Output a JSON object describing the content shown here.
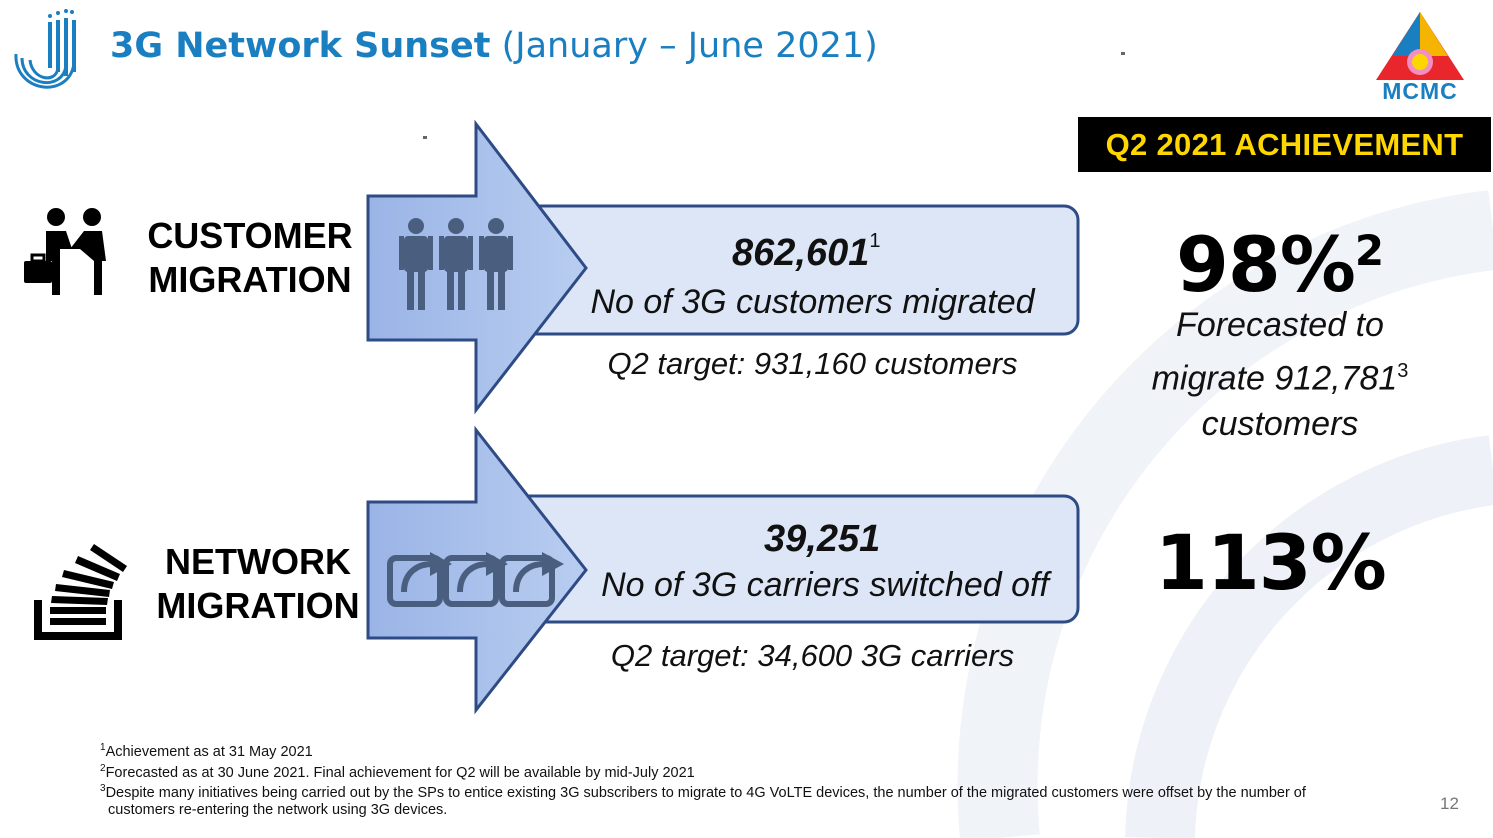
{
  "header": {
    "title_bold": "3G Network Sunset",
    "title_rest": "(January – June 2021)",
    "logo_right_text": "MCMC"
  },
  "badge": {
    "label": "Q2 2021 ACHIEVEMENT"
  },
  "customer": {
    "label_line1": "CUSTOMER",
    "label_line2": "MIGRATION",
    "value": "862,601",
    "value_sup": "1",
    "description": "No of 3G customers migrated",
    "target": "Q2 target: 931,160 customers",
    "achievement": "98%",
    "achievement_sup": "2",
    "forecast_line1": "Forecasted to",
    "forecast_line2": "migrate 912,781",
    "forecast_sup": "3",
    "forecast_line3": "customers"
  },
  "network": {
    "label_line1": "NETWORK",
    "label_line2": "MIGRATION",
    "value": "39,251",
    "description": "No of 3G carriers switched off",
    "target": "Q2 target: 34,600 3G carriers",
    "achievement": "113%"
  },
  "footnotes": [
    {
      "num": "1",
      "text": "Achievement as at 31 May 2021"
    },
    {
      "num": "2",
      "text": "Forecasted as at 30 June 2021. Final achievement for Q2 will be available by mid-July 2021"
    },
    {
      "num": "3",
      "text": "Despite many initiatives being carried out by the SPs to entice existing 3G subscribers to migrate to 4G VoLTE devices, the number of the migrated customers were offset by the number of",
      "text2": "customers re-entering the network using 3G devices."
    }
  ],
  "page_number": "12",
  "colors": {
    "title": "#1a7fc1",
    "badge_bg": "#000000",
    "badge_text": "#ffd700",
    "arrow_fill": "#a9c0ea",
    "box_fill": "#dde6f6",
    "box_stroke": "#2e4b86"
  }
}
